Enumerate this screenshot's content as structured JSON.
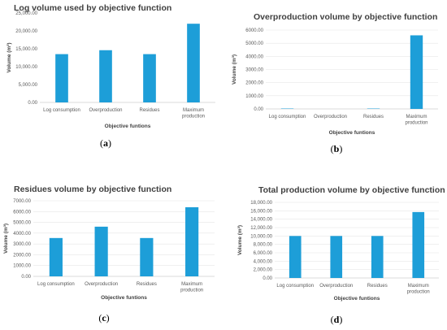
{
  "panel_labels": [
    "(a)",
    "(b)",
    "(c)",
    "(d)"
  ],
  "colors": {
    "bar": "#1d9ed8"
  },
  "chart_data": [
    {
      "type": "bar",
      "title": "Log volume used by objective function",
      "xlabel": "Objective funtions",
      "ylabel": "Volume (m³)",
      "categories": [
        "Log consumption",
        "Overproduction",
        "Residues",
        "Maximum production"
      ],
      "values": [
        13500,
        14600,
        13500,
        22000
      ],
      "ylim": [
        0,
        25000
      ],
      "yticks": [
        "0.00",
        "5,000.00",
        "10,000.00",
        "15,000.00",
        "20,000.00",
        "25,000.00"
      ],
      "grid": false
    },
    {
      "type": "bar",
      "title": "Overproduction volume by objective function",
      "xlabel": "Objective funtions",
      "ylabel": "Volume (m³)",
      "categories": [
        "Log consumption",
        "Overproduction",
        "Residues",
        "Maximum production"
      ],
      "values": [
        30,
        0,
        30,
        5600
      ],
      "ylim": [
        0,
        6000
      ],
      "yticks": [
        "0.00",
        "1000.00",
        "2000.00",
        "3000.00",
        "4000.00",
        "5000.00",
        "6000.00"
      ],
      "grid": true
    },
    {
      "type": "bar",
      "title": "Residues volume by objective function",
      "xlabel": "Objective funtions",
      "ylabel": "Volume (m³)",
      "categories": [
        "Log consumption",
        "Overproduction",
        "Residues",
        "Maximum production"
      ],
      "values": [
        3550,
        4600,
        3550,
        6400
      ],
      "ylim": [
        0,
        7000
      ],
      "yticks": [
        "0.00",
        "1000.00",
        "2000.00",
        "3000.00",
        "4000.00",
        "5000.00",
        "6000.00",
        "7000.00"
      ],
      "grid": true
    },
    {
      "type": "bar",
      "title": "Total production volume by objective function",
      "xlabel": "Objective funtions",
      "ylabel": "Volume (m³)",
      "categories": [
        "Log consumption",
        "Overproduction",
        "Residues",
        "Maximum production"
      ],
      "values": [
        10000,
        10000,
        10000,
        15700
      ],
      "ylim": [
        0,
        18000
      ],
      "yticks": [
        "0.00",
        "2,000.00",
        "4,000.00",
        "6,000.00",
        "8,000.00",
        "10,000.00",
        "12,000.00",
        "14,000.00",
        "16,000.00",
        "18,000.00"
      ],
      "grid": true
    }
  ]
}
